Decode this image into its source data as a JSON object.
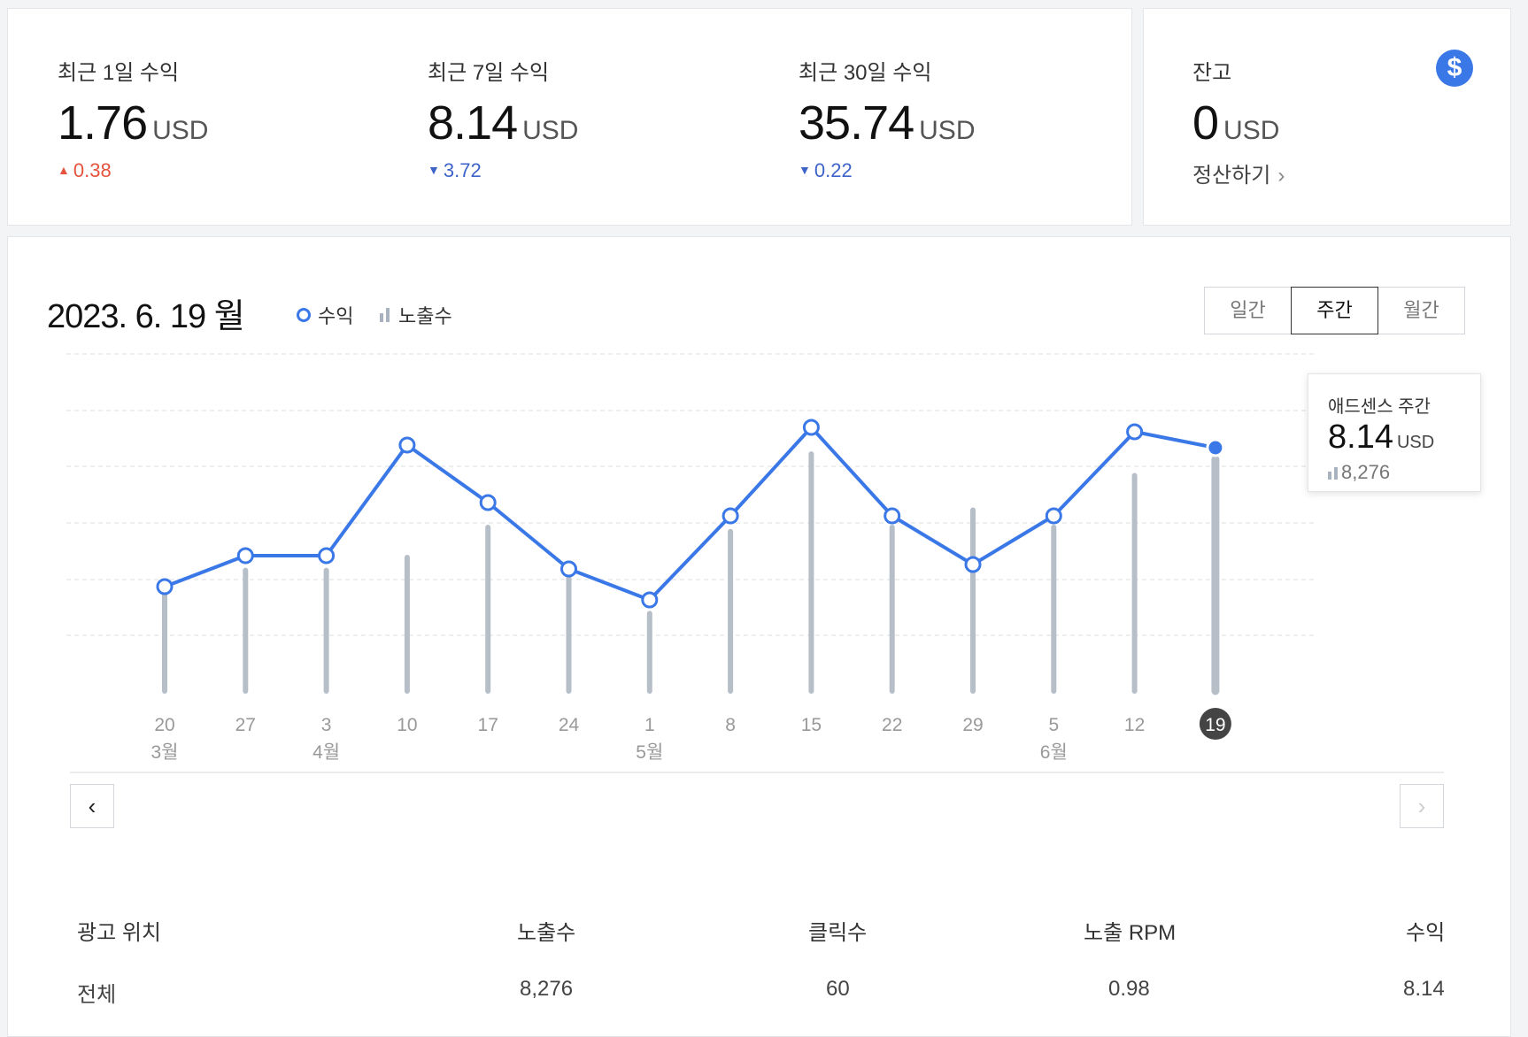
{
  "summary": {
    "metrics": [
      {
        "label": "최근 1일 수익",
        "value": "1.76",
        "unit": "USD",
        "delta": "0.38",
        "direction": "up"
      },
      {
        "label": "최근 7일 수익",
        "value": "8.14",
        "unit": "USD",
        "delta": "3.72",
        "direction": "down"
      },
      {
        "label": "최근 30일 수익",
        "value": "35.74",
        "unit": "USD",
        "delta": "0.22",
        "direction": "down"
      }
    ],
    "up_symbol": "▲",
    "down_symbol": "▼"
  },
  "balance": {
    "label": "잔고",
    "value": "0",
    "unit": "USD",
    "icon": "dollar-icon",
    "icon_glyph": "$",
    "settle_label": "정산하기",
    "chevron": "›"
  },
  "chart_header": {
    "date_title": "2023. 6. 19 월",
    "legend_revenue": "수익",
    "legend_impressions": "노출수",
    "periods": [
      "일간",
      "주간",
      "월간"
    ],
    "active_period": "주간"
  },
  "chart_data": {
    "type": "line",
    "x": [
      "20",
      "27",
      "3",
      "10",
      "17",
      "24",
      "1",
      "8",
      "15",
      "22",
      "29",
      "5",
      "12",
      "19"
    ],
    "month_labels": [
      {
        "index": 0,
        "label": "3월"
      },
      {
        "index": 2,
        "label": "4월"
      },
      {
        "index": 6,
        "label": "5월"
      },
      {
        "index": 11,
        "label": "6월"
      }
    ],
    "series": [
      {
        "name": "수익",
        "type": "line",
        "color": "#3b78e7",
        "values": [
          5.0,
          5.7,
          5.7,
          8.2,
          6.9,
          5.4,
          4.7,
          6.6,
          8.6,
          6.6,
          5.5,
          6.6,
          8.5,
          8.14
        ]
      },
      {
        "name": "노출수",
        "type": "bar",
        "color": "#b6bec8",
        "values": [
          5200,
          5700,
          5700,
          6000,
          6700,
          5800,
          4700,
          6600,
          8400,
          6700,
          7100,
          6700,
          7900,
          8276
        ]
      }
    ],
    "selected_index": 13,
    "grid": true
  },
  "tooltip": {
    "title": "애드센스 주간",
    "value": "8.14",
    "unit": "USD",
    "impressions": "8,276"
  },
  "nav": {
    "prev": "‹",
    "next": "›"
  },
  "table": {
    "headers": [
      "광고 위치",
      "노출수",
      "클릭수",
      "노출 RPM",
      "수익"
    ],
    "rows": [
      [
        "전체",
        "8,276",
        "60",
        "0.98",
        "8.14"
      ]
    ]
  }
}
